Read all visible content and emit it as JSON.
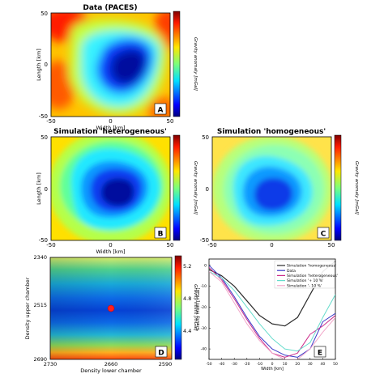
{
  "chart_data": [
    {
      "panel": "A",
      "type": "heatmap",
      "title": "Data (PACES)",
      "xlabel": "Width [km]",
      "ylabel": "Length [km]",
      "xticks": [
        "-50",
        "0",
        "50"
      ],
      "yticks": [
        "50",
        "0",
        "-50"
      ],
      "xlim": [
        -50,
        50
      ],
      "ylim": [
        -50,
        50
      ],
      "colorbar": {
        "label": "Gravity anomaly [mGal]",
        "range": [
          -50,
          20
        ],
        "ticks": [
          "20",
          "10",
          "0",
          "-10",
          "-20",
          "-30",
          "-40",
          "-50"
        ]
      },
      "anomaly_min_mgal": -50,
      "anomaly_center_km": [
        12,
        14
      ]
    },
    {
      "panel": "B",
      "type": "heatmap",
      "title": "Simulation 'heterogeneous'",
      "xlabel": "Width [km]",
      "ylabel": "Length [km]",
      "xticks": [
        "-50",
        "0",
        "50"
      ],
      "yticks": [
        "50",
        "0",
        "-50"
      ],
      "xlim": [
        -50,
        50
      ],
      "ylim": [
        -50,
        50
      ],
      "colorbar": {
        "label": "Gravity anomaly [mGal]",
        "range": [
          -50,
          20
        ],
        "ticks": [
          "20",
          "10",
          "0",
          "-10",
          "-20",
          "-30",
          "-40",
          "-50"
        ]
      },
      "anomaly_min_mgal": -50,
      "anomaly_center_km": [
        8,
        2
      ]
    },
    {
      "panel": "C",
      "type": "heatmap",
      "title": "Simulation 'homogeneous'",
      "xlabel": "",
      "ylabel": "",
      "xticks": [
        "-50",
        "0",
        "50"
      ],
      "yticks": [
        "50",
        "0",
        "-50"
      ],
      "xlim": [
        -50,
        50
      ],
      "ylim": [
        -50,
        50
      ],
      "colorbar": {
        "label": "Gravity anomaly [mGal]",
        "range": [
          -50,
          20
        ],
        "ticks": [
          "20",
          "10",
          "0",
          "-10",
          "-20",
          "-30",
          "-40",
          "-50"
        ]
      },
      "anomaly_min_mgal": -36,
      "anomaly_center_km": [
        6,
        2
      ]
    },
    {
      "panel": "D",
      "type": "heatmap",
      "xlabel": "Density lower chamber",
      "ylabel": "Density upper chamber",
      "xticks": [
        "2730",
        "2660",
        "2590"
      ],
      "yticks": [
        "2340",
        "2515",
        "2690"
      ],
      "xlim": [
        2730,
        2590
      ],
      "ylim": [
        2690,
        2340
      ],
      "colorbar": {
        "label": "Gravity misfit [mGal]",
        "range": [
          4.1,
          5.4
        ],
        "ticks": [
          "5.2",
          "4.8",
          "4.4"
        ]
      },
      "marker": {
        "x": 2660,
        "y": 2515
      }
    },
    {
      "panel": "E",
      "type": "line",
      "xlabel": "Width [km]",
      "ylabel": "Gravity misfit [mGal]",
      "x": [
        -50,
        -40,
        -30,
        -20,
        -10,
        0,
        10,
        20,
        30,
        40,
        50
      ],
      "xticks": [
        "-50",
        "-40",
        "-30",
        "-20",
        "-10",
        "0",
        "10",
        "20",
        "30",
        "40",
        "50"
      ],
      "yticks": [
        "0",
        "-10",
        "-20",
        "-30",
        "-40"
      ],
      "xlim": [
        -50,
        50
      ],
      "ylim": [
        -45,
        3
      ],
      "legend_position": "top-right",
      "series": [
        {
          "name": "Simulation 'homogeneous'",
          "color": "#2b2b2b",
          "values": [
            -2,
            -5,
            -10,
            -17,
            -24,
            -28,
            -29,
            -25,
            -14,
            -3,
            2
          ]
        },
        {
          "name": "Data",
          "color": "#3a39c8",
          "values": [
            0,
            -6,
            -15,
            -25,
            -34,
            -40,
            -43,
            -44,
            -40,
            -27,
            -23
          ]
        },
        {
          "name": "Simulation 'heterogeneous'",
          "color": "#cc2f8c",
          "values": [
            -1,
            -7,
            -16,
            -26,
            -35,
            -42,
            -44,
            -42,
            -33,
            -29,
            -24
          ]
        },
        {
          "name": "Simulation '+ 10 %'",
          "color": "#66dccc",
          "values": [
            -3,
            -6,
            -12,
            -20,
            -28,
            -35,
            -40,
            -41,
            -37,
            -25,
            -14
          ]
        },
        {
          "name": "Simulation '- 10 %'",
          "color": "#f2a7c9",
          "values": [
            -3,
            -8,
            -18,
            -28,
            -36,
            -42,
            -45,
            -45,
            -40,
            -32,
            -25
          ]
        }
      ]
    }
  ]
}
